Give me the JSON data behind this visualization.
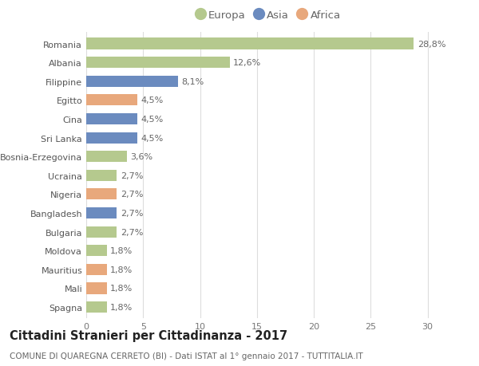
{
  "countries": [
    "Romania",
    "Albania",
    "Filippine",
    "Egitto",
    "Cina",
    "Sri Lanka",
    "Bosnia-Erzegovina",
    "Ucraina",
    "Nigeria",
    "Bangladesh",
    "Bulgaria",
    "Moldova",
    "Mauritius",
    "Mali",
    "Spagna"
  ],
  "values": [
    28.8,
    12.6,
    8.1,
    4.5,
    4.5,
    4.5,
    3.6,
    2.7,
    2.7,
    2.7,
    2.7,
    1.8,
    1.8,
    1.8,
    1.8
  ],
  "labels": [
    "28,8%",
    "12,6%",
    "8,1%",
    "4,5%",
    "4,5%",
    "4,5%",
    "3,6%",
    "2,7%",
    "2,7%",
    "2,7%",
    "2,7%",
    "1,8%",
    "1,8%",
    "1,8%",
    "1,8%"
  ],
  "continents": [
    "Europa",
    "Europa",
    "Asia",
    "Africa",
    "Asia",
    "Asia",
    "Europa",
    "Europa",
    "Africa",
    "Asia",
    "Europa",
    "Europa",
    "Africa",
    "Africa",
    "Europa"
  ],
  "colors": {
    "Europa": "#b5c98e",
    "Asia": "#6b8bbf",
    "Africa": "#e8a87c"
  },
  "title": "Cittadini Stranieri per Cittadinanza - 2017",
  "subtitle": "COMUNE DI QUAREGNA CERRETO (BI) - Dati ISTAT al 1° gennaio 2017 - TUTTITALIA.IT",
  "xlim": [
    0,
    32
  ],
  "xticks": [
    0,
    5,
    10,
    15,
    20,
    25,
    30
  ],
  "bg_color": "#ffffff",
  "grid_color": "#dddddd",
  "bar_height": 0.6,
  "title_fontsize": 10.5,
  "subtitle_fontsize": 7.5,
  "label_fontsize": 8,
  "tick_fontsize": 8,
  "legend_fontsize": 9.5
}
